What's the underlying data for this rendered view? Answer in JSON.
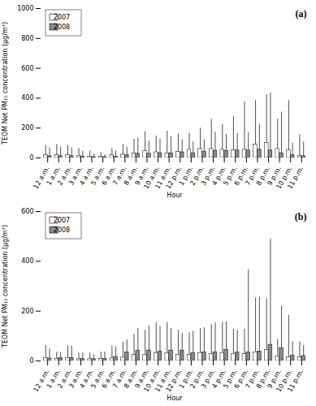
{
  "chart_data": [
    {
      "type": "bar",
      "xlabel": "Hour",
      "ylabel": "TEOM Net PM₁₀ concentration (μg/m³)",
      "annotations": [
        "(a)"
      ],
      "categories": [
        "12 a.m.",
        "1 a.m.",
        "2 a.m.",
        "3 a.m.",
        "4 a.m.",
        "5 a.m.",
        "6 a.m.",
        "7 a.m.",
        "8 a.m.",
        "9 a.m.",
        "10 a.m.",
        "11 a.m.",
        "12 p.m.",
        "1 p.m.",
        "2 p.m.",
        "3 p.m.",
        "4 p.m.",
        "5 p.m.",
        "6 p.m.",
        "7 p.m.",
        "8 p.m.",
        "9 p.m.",
        "10 p.m.",
        "11 p.m."
      ],
      "series": [
        {
          "name": "2007",
          "color": "#ffffff",
          "values": [
            20,
            20,
            20,
            15,
            8,
            8,
            18,
            22,
            30,
            45,
            38,
            30,
            40,
            55,
            60,
            60,
            55,
            50,
            55,
            90,
            100,
            60,
            50,
            12
          ],
          "errors_upper": [
            65,
            70,
            65,
            50,
            38,
            28,
            45,
            70,
            95,
            130,
            110,
            150,
            120,
            110,
            140,
            200,
            170,
            230,
            320,
            295,
            325,
            200,
            335,
            145
          ]
        },
        {
          "name": "2008",
          "color": "#888888",
          "values": [
            12,
            12,
            12,
            8,
            5,
            5,
            8,
            18,
            28,
            28,
            32,
            32,
            38,
            32,
            42,
            48,
            48,
            50,
            50,
            55,
            50,
            32,
            18,
            12
          ],
          "errors_upper": [
            55,
            60,
            55,
            38,
            22,
            18,
            38,
            55,
            105,
            85,
            95,
            110,
            85,
            75,
            80,
            125,
            110,
            115,
            120,
            170,
            385,
            275,
            80,
            95
          ]
        }
      ],
      "ylim": [
        0,
        1000
      ],
      "yticks": [
        0,
        200,
        400,
        600,
        800,
        1000
      ],
      "legend": "upper left",
      "grid": false
    },
    {
      "type": "bar",
      "xlabel": "Hour",
      "ylabel": "TEOM Net PM₁₀ concentration (μg/m³)",
      "annotations": [
        "(b)"
      ],
      "categories": [
        "12 a.m.",
        "1 a.m.",
        "2 a.m.",
        "3 a.m.",
        "4 a.m.",
        "5 a.m.",
        "6 a.m.",
        "7 a.m.",
        "8 a.m.",
        "9 a.m.",
        "10 a.m.",
        "11 a.m.",
        "12 p.m.",
        "1 p.m.",
        "2 p.m.",
        "3 p.m.",
        "4 p.m.",
        "5 p.m.",
        "6 p.m.",
        "7 p.m.",
        "8 p.m.",
        "9 p.m.",
        "10 p.m.",
        "11 p.m."
      ],
      "series": [
        {
          "name": "2007",
          "color": "#ffffff",
          "values": [
            12,
            8,
            12,
            7,
            7,
            8,
            10,
            13,
            25,
            25,
            32,
            32,
            25,
            25,
            32,
            28,
            32,
            28,
            28,
            35,
            45,
            18,
            15,
            15
          ],
          "errors_upper": [
            50,
            28,
            50,
            25,
            25,
            28,
            50,
            62,
            82,
            98,
            122,
            122,
            98,
            88,
            98,
            118,
            122,
            100,
            100,
            218,
            205,
            68,
            168,
            62
          ]
        },
        {
          "name": "2008",
          "color": "#888888",
          "values": [
            10,
            12,
            12,
            8,
            7,
            8,
            16,
            35,
            42,
            42,
            38,
            42,
            42,
            32,
            35,
            35,
            45,
            35,
            35,
            38,
            65,
            52,
            22,
            20
          ],
          "errors_upper": [
            38,
            22,
            48,
            25,
            18,
            28,
            40,
            50,
            88,
            98,
            100,
            88,
            68,
            88,
            98,
            118,
            112,
            88,
            332,
            218,
            425,
            168,
            55,
            42
          ]
        }
      ],
      "ylim": [
        0,
        600
      ],
      "yticks": [
        0,
        200,
        400,
        600
      ],
      "legend": "upper left",
      "grid": false
    }
  ]
}
